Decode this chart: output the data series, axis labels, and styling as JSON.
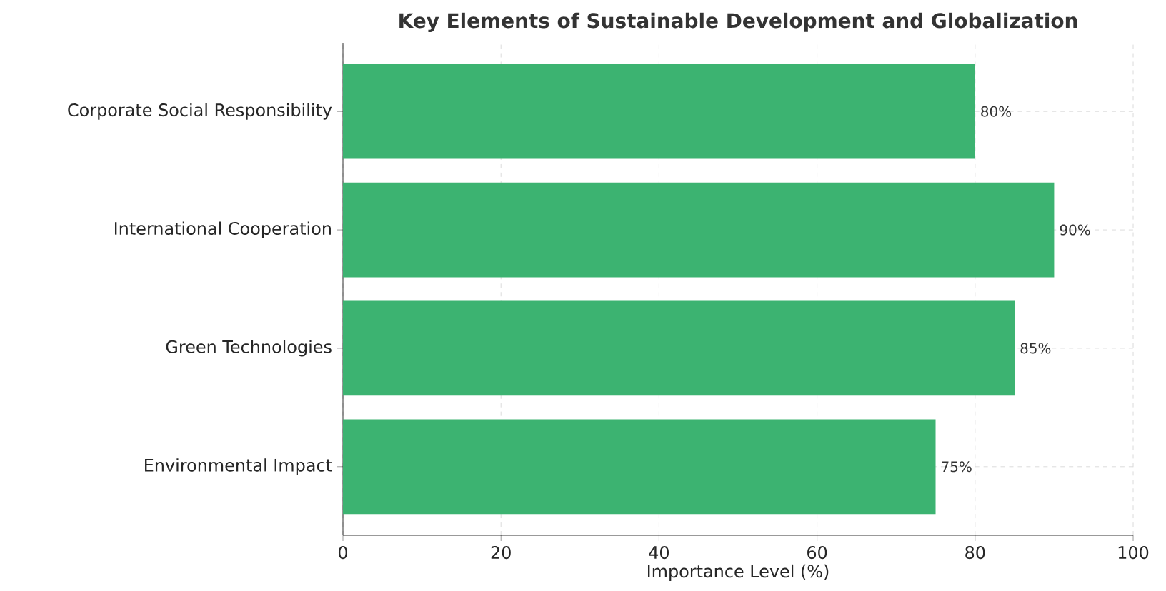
{
  "chart_data": {
    "type": "bar",
    "orientation": "horizontal",
    "title": "Key Elements of Sustainable Development and Globalization",
    "xlabel": "Importance Level (%)",
    "categories": [
      "Corporate Social Responsibility",
      "International Cooperation",
      "Green Technologies",
      "Environmental Impact"
    ],
    "values": [
      80,
      90,
      85,
      75
    ],
    "value_labels": [
      "80%",
      "90%",
      "85%",
      "75%"
    ],
    "color": "#3cb371",
    "xlim": [
      0,
      100
    ],
    "xticks": [
      0,
      20,
      40,
      60,
      80,
      100
    ],
    "grid": true
  }
}
